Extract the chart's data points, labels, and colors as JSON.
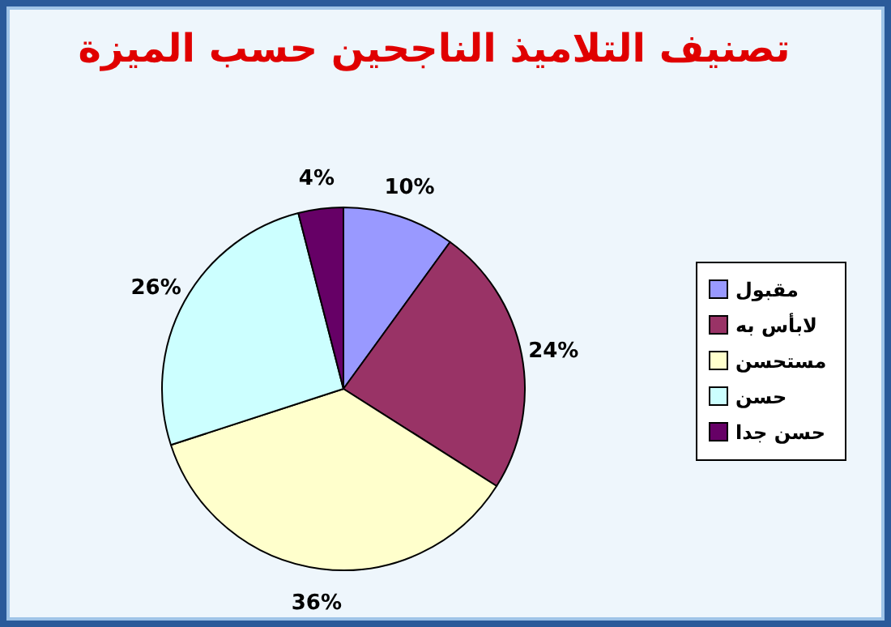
{
  "chart_data": {
    "type": "pie",
    "title": "تصنيف التلاميذ الناجحين حسب الميزة",
    "categories": [
      "مقبول",
      "لابأس به",
      "مستحسن",
      "حسن",
      "حسن جدا"
    ],
    "values": [
      10,
      24,
      36,
      26,
      4
    ],
    "value_labels": [
      "10%",
      "24%",
      "36%",
      "26%",
      "4%"
    ],
    "colors": [
      "#9999ff",
      "#993366",
      "#ffffcc",
      "#ccffff",
      "#660066"
    ],
    "legend": "right"
  }
}
